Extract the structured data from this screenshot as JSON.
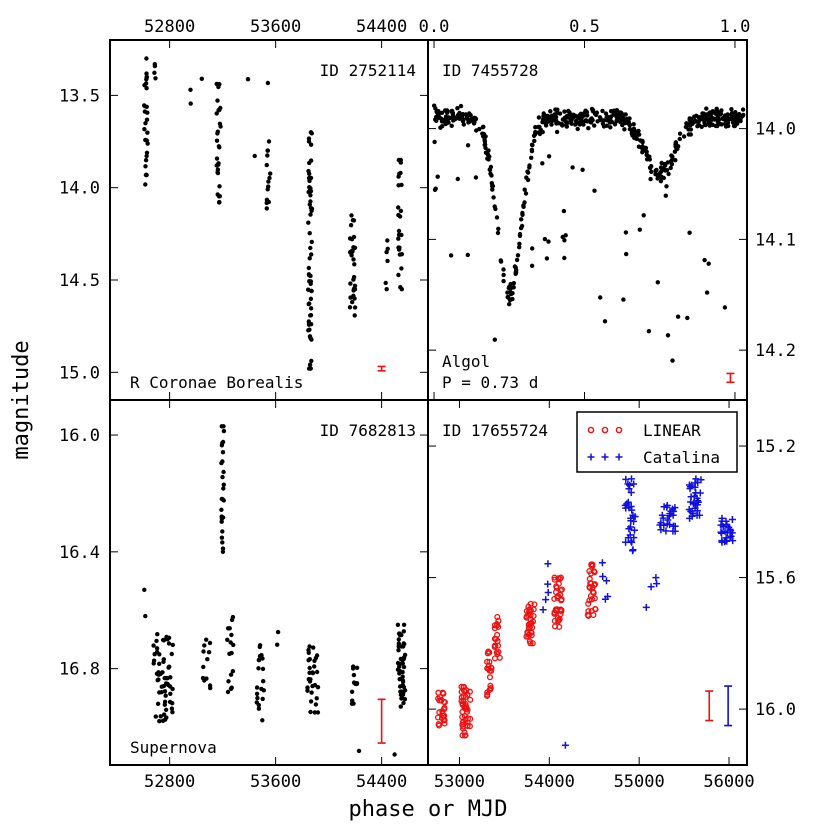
{
  "figure": {
    "ylabel": "magnitude",
    "xlabel": "phase or MJD",
    "colors": {
      "points": "#000000",
      "linear": "#ee1111",
      "catalina": "#1111dd"
    }
  },
  "chart_data": [
    {
      "type": "scatter",
      "panel": "top-left",
      "id_label": "ID 2752114",
      "class_label": "R Coronae Borealis",
      "x_axis": {
        "min": 52350,
        "max": 54750,
        "ticks": [
          52800,
          53600,
          54400
        ],
        "tick_labels": [
          "52800",
          "53600",
          "54400"
        ],
        "label_position": "top"
      },
      "y_axis": {
        "min": 15.15,
        "max": 13.2,
        "ticks": [
          13.5,
          14.0,
          14.5,
          15.0
        ],
        "tick_labels": [
          "13.5",
          "14.0",
          "14.5",
          "15.0"
        ],
        "label_side": "left"
      },
      "error_bar": {
        "x": 54400,
        "y": 14.98,
        "half": 0.012
      },
      "clusters": [
        {
          "x": 52620,
          "width": 30,
          "y": [
            13.3,
            14.0
          ],
          "n": 28
        },
        {
          "x": 52690,
          "width": 20,
          "y": [
            13.32,
            13.42
          ],
          "n": 4
        },
        {
          "x": 52960,
          "width": 10,
          "y": [
            13.47,
            13.55
          ],
          "n": 2
        },
        {
          "x": 53040,
          "width": 10,
          "y": [
            13.4,
            13.42
          ],
          "n": 1
        },
        {
          "x": 53170,
          "width": 30,
          "y": [
            13.38,
            14.08
          ],
          "n": 30
        },
        {
          "x": 53390,
          "width": 10,
          "y": [
            13.4,
            13.42
          ],
          "n": 1
        },
        {
          "x": 53440,
          "width": 10,
          "y": [
            13.82,
            13.84
          ],
          "n": 1
        },
        {
          "x": 53540,
          "width": 20,
          "y": [
            13.42,
            13.45
          ],
          "n": 1
        },
        {
          "x": 53545,
          "width": 30,
          "y": [
            13.75,
            14.15
          ],
          "n": 14
        },
        {
          "x": 53860,
          "width": 30,
          "y": [
            13.7,
            14.98
          ],
          "n": 60
        },
        {
          "x": 54180,
          "width": 40,
          "y": [
            14.15,
            14.7
          ],
          "n": 30
        },
        {
          "x": 54440,
          "width": 20,
          "y": [
            14.25,
            14.55
          ],
          "n": 6
        },
        {
          "x": 54540,
          "width": 30,
          "y": [
            13.85,
            14.55
          ],
          "n": 25
        }
      ]
    },
    {
      "type": "scatter",
      "panel": "top-right",
      "id_label": "ID 7455728",
      "class_label": "Algol",
      "period_label": "P = 0.73 d",
      "x_axis": {
        "min": -0.02,
        "max": 1.04,
        "ticks": [
          0.0,
          0.5,
          1.0
        ],
        "tick_labels": [
          "0.0",
          "0.5",
          "1.0"
        ],
        "label_position": "top"
      },
      "y_axis": {
        "min": 14.245,
        "max": 13.92,
        "ticks": [
          14.0,
          14.1,
          14.2
        ],
        "tick_labels": [
          "14.0",
          "14.1",
          "14.2"
        ],
        "label_side": "right"
      },
      "error_bar": {
        "x": 0.985,
        "y": 14.225,
        "half": 0.004
      },
      "light_curve": {
        "baseline": 13.99,
        "primary_eclipse": {
          "phase": 0.25,
          "depth": 0.16,
          "width": 0.04
        },
        "secondary_eclipse": {
          "phase": 0.75,
          "depth": 0.05,
          "width": 0.05
        },
        "n": 620
      }
    },
    {
      "type": "scatter",
      "panel": "bottom-left",
      "id_label": "ID 7682813",
      "class_label": "Supernova",
      "x_axis": {
        "min": 52350,
        "max": 54750,
        "ticks": [
          52800,
          53600,
          54400
        ],
        "tick_labels": [
          "52800",
          "53600",
          "54400"
        ],
        "label_position": "bottom"
      },
      "y_axis": {
        "min": 17.13,
        "max": 15.88,
        "ticks": [
          16.0,
          16.4,
          16.8
        ],
        "tick_labels": [
          "16.0",
          "16.4",
          "16.8"
        ],
        "label_side": "left"
      },
      "error_bar": {
        "x": 54400,
        "y": 16.98,
        "half": 0.075
      },
      "clusters": [
        {
          "x": 52750,
          "width": 150,
          "y": [
            16.68,
            16.98
          ],
          "n": 60
        },
        {
          "x": 52610,
          "width": 20,
          "y": [
            16.53,
            16.62
          ],
          "n": 2
        },
        {
          "x": 53080,
          "width": 60,
          "y": [
            16.7,
            16.88
          ],
          "n": 12
        },
        {
          "x": 53200,
          "width": 20,
          "y": [
            15.97,
            16.4
          ],
          "n": 26
        },
        {
          "x": 53260,
          "width": 50,
          "y": [
            16.62,
            16.88
          ],
          "n": 16
        },
        {
          "x": 53480,
          "width": 70,
          "y": [
            16.72,
            16.98
          ],
          "n": 20
        },
        {
          "x": 53620,
          "width": 20,
          "y": [
            16.67,
            16.72
          ],
          "n": 2
        },
        {
          "x": 53880,
          "width": 80,
          "y": [
            16.72,
            16.95
          ],
          "n": 30
        },
        {
          "x": 54200,
          "width": 50,
          "y": [
            16.78,
            16.92
          ],
          "n": 12
        },
        {
          "x": 54220,
          "width": 20,
          "y": [
            17.07,
            17.09
          ],
          "n": 1
        },
        {
          "x": 54550,
          "width": 60,
          "y": [
            16.65,
            16.93
          ],
          "n": 50
        },
        {
          "x": 54500,
          "width": 10,
          "y": [
            17.09,
            17.1
          ],
          "n": 1
        }
      ]
    },
    {
      "type": "scatter",
      "panel": "bottom-right",
      "id_label": "ID 17655724",
      "x_axis": {
        "min": 52650,
        "max": 56200,
        "ticks": [
          53000,
          54000,
          55000,
          56000
        ],
        "tick_labels": [
          "53000",
          "54000",
          "55000",
          "56000"
        ],
        "label_position": "bottom"
      },
      "y_axis": {
        "min": 16.17,
        "max": 15.06,
        "ticks": [
          15.2,
          15.6,
          16.0
        ],
        "tick_labels": [
          "15.2",
          "15.6",
          "16.0"
        ],
        "label_side": "right"
      },
      "legend": {
        "placement": "top-right",
        "entries": [
          {
            "name": "LINEAR",
            "marker": "o",
            "color": "#ee1111"
          },
          {
            "name": "Catalina",
            "marker": "+",
            "color": "#1111dd"
          }
        ]
      },
      "error_bars": [
        {
          "series": "LINEAR",
          "x": 55780,
          "y": 15.99,
          "half": 0.045
        },
        {
          "series": "Catalina",
          "x": 55990,
          "y": 15.99,
          "half": 0.06
        }
      ],
      "series": [
        {
          "name": "LINEAR",
          "marker": "o",
          "color": "#ee1111",
          "clusters": [
            {
              "x": 52800,
              "width": 80,
              "y": [
                15.95,
                16.05
              ],
              "n": 25
            },
            {
              "x": 53070,
              "width": 100,
              "y": [
                15.93,
                16.08
              ],
              "n": 45
            },
            {
              "x": 53330,
              "width": 60,
              "y": [
                15.82,
                15.96
              ],
              "n": 20
            },
            {
              "x": 53420,
              "width": 60,
              "y": [
                15.72,
                15.85
              ],
              "n": 20
            },
            {
              "x": 53790,
              "width": 90,
              "y": [
                15.68,
                15.8
              ],
              "n": 35
            },
            {
              "x": 54100,
              "width": 90,
              "y": [
                15.6,
                15.75
              ],
              "n": 35
            },
            {
              "x": 54470,
              "width": 90,
              "y": [
                15.56,
                15.72
              ],
              "n": 30
            }
          ]
        },
        {
          "name": "Catalina",
          "marker": "+",
          "color": "#1111dd",
          "clusters": [
            {
              "x": 53950,
              "width": 80,
              "y": [
                15.62,
                15.7
              ],
              "n": 4
            },
            {
              "x": 54620,
              "width": 80,
              "y": [
                15.55,
                15.68
              ],
              "n": 5
            },
            {
              "x": 54900,
              "width": 120,
              "y": [
                15.3,
                15.52
              ],
              "n": 30
            },
            {
              "x": 55320,
              "width": 180,
              "y": [
                15.38,
                15.46
              ],
              "n": 25
            },
            {
              "x": 55620,
              "width": 140,
              "y": [
                15.3,
                15.42
              ],
              "n": 30
            },
            {
              "x": 55980,
              "width": 140,
              "y": [
                15.42,
                15.5
              ],
              "n": 25
            },
            {
              "x": 55150,
              "width": 120,
              "y": [
                15.6,
                15.63
              ],
              "n": 3
            },
            {
              "x": 55080,
              "width": 10,
              "y": [
                15.68,
                15.7
              ],
              "n": 1
            },
            {
              "x": 54180,
              "width": 10,
              "y": [
                16.1,
                16.12
              ],
              "n": 1
            },
            {
              "x": 53980,
              "width": 10,
              "y": [
                15.55,
                15.57
              ],
              "n": 1
            }
          ]
        }
      ]
    }
  ]
}
